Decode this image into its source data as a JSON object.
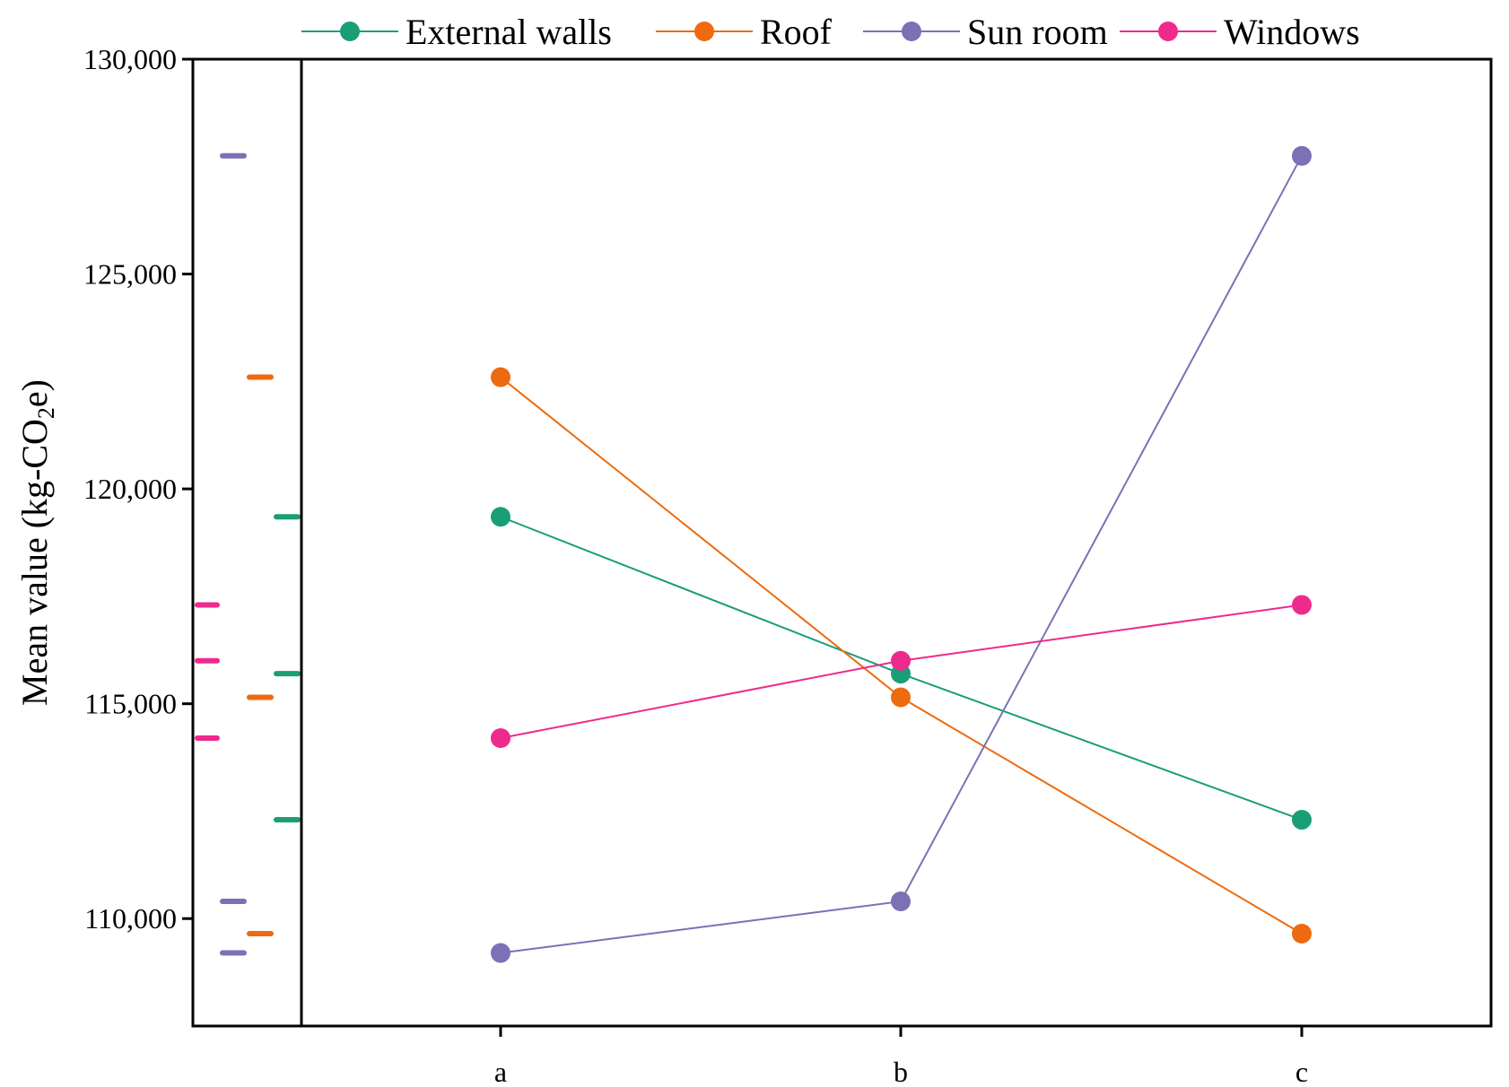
{
  "chart_data": {
    "type": "line",
    "title": "",
    "xlabel": "",
    "ylabel": {
      "prefix": "Mean value (kg-CO",
      "subscript": "2",
      "suffix": "e)"
    },
    "categories": [
      "a",
      "b",
      "c"
    ],
    "ylim": [
      107500,
      130000
    ],
    "yticks": [
      110000,
      115000,
      120000,
      125000,
      130000
    ],
    "ytick_labels": [
      "110,000",
      "115,000",
      "120,000",
      "125,000",
      "130,000"
    ],
    "legend_position": "top",
    "series": [
      {
        "name": "External walls",
        "color": "#1a9e77",
        "values": [
          119350,
          115700,
          112300
        ]
      },
      {
        "name": "Roof",
        "color": "#ee6a10",
        "values": [
          122600,
          115150,
          109650
        ]
      },
      {
        "name": "Sun room",
        "color": "#7b71b5",
        "values": [
          109200,
          110400,
          127750
        ]
      },
      {
        "name": "Windows",
        "color": "#ee2a8c",
        "values": [
          114200,
          116000,
          117300
        ]
      }
    ],
    "rug_order": [
      "Windows",
      "Sun room",
      "Roof",
      "External walls"
    ]
  }
}
